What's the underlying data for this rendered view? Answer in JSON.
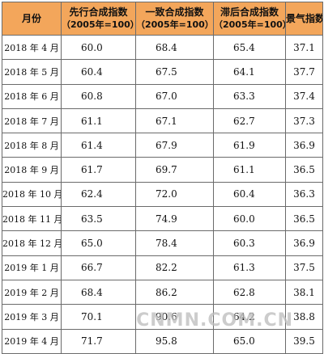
{
  "table": {
    "headers": [
      {
        "label": "月份",
        "sub": ""
      },
      {
        "label": "先行合成指数",
        "sub": "（2005年=100）"
      },
      {
        "label": "一致合成指数",
        "sub": "（2005年=100）"
      },
      {
        "label": "滞后合成指数",
        "sub": "（2005年=100）"
      },
      {
        "label": "景气指数",
        "sub": ""
      }
    ],
    "rows": [
      {
        "month": "2018 年 4 月",
        "leading": "60.0",
        "coincident": "68.4",
        "lagging": "65.4",
        "climate": "37.1"
      },
      {
        "month": "2018 年 5 月",
        "leading": "60.4",
        "coincident": "67.5",
        "lagging": "64.1",
        "climate": "37.7"
      },
      {
        "month": "2018 年 6 月",
        "leading": "60.8",
        "coincident": "67.0",
        "lagging": "63.3",
        "climate": "37.4"
      },
      {
        "month": "2018 年 7 月",
        "leading": "61.1",
        "coincident": "67.1",
        "lagging": "62.7",
        "climate": "37.3"
      },
      {
        "month": "2018 年 8 月",
        "leading": "61.4",
        "coincident": "67.9",
        "lagging": "61.9",
        "climate": "36.9"
      },
      {
        "month": "2018 年 9 月",
        "leading": "61.7",
        "coincident": "69.7",
        "lagging": "61.1",
        "climate": "36.5"
      },
      {
        "month": "2018 年 10 月",
        "leading": "62.4",
        "coincident": "72.0",
        "lagging": "60.4",
        "climate": "36.3"
      },
      {
        "month": "2018 年 11 月",
        "leading": "63.5",
        "coincident": "74.9",
        "lagging": "60.0",
        "climate": "36.5"
      },
      {
        "month": "2018 年 12 月",
        "leading": "65.0",
        "coincident": "78.4",
        "lagging": "60.3",
        "climate": "36.9"
      },
      {
        "month": "2019 年 1 月",
        "leading": "66.7",
        "coincident": "82.2",
        "lagging": "61.3",
        "climate": "37.5"
      },
      {
        "month": "2019 年 2 月",
        "leading": "68.4",
        "coincident": "86.2",
        "lagging": "62.8",
        "climate": "38.1"
      },
      {
        "month": "2019 年 3 月",
        "leading": "70.1",
        "coincident": "90.6",
        "lagging": "64.2",
        "climate": "38.8"
      },
      {
        "month": "2019 年 4 月",
        "leading": "71.7",
        "coincident": "95.8",
        "lagging": "65.0",
        "climate": "39.5"
      }
    ]
  },
  "watermark": "CNMN.COM.CN"
}
